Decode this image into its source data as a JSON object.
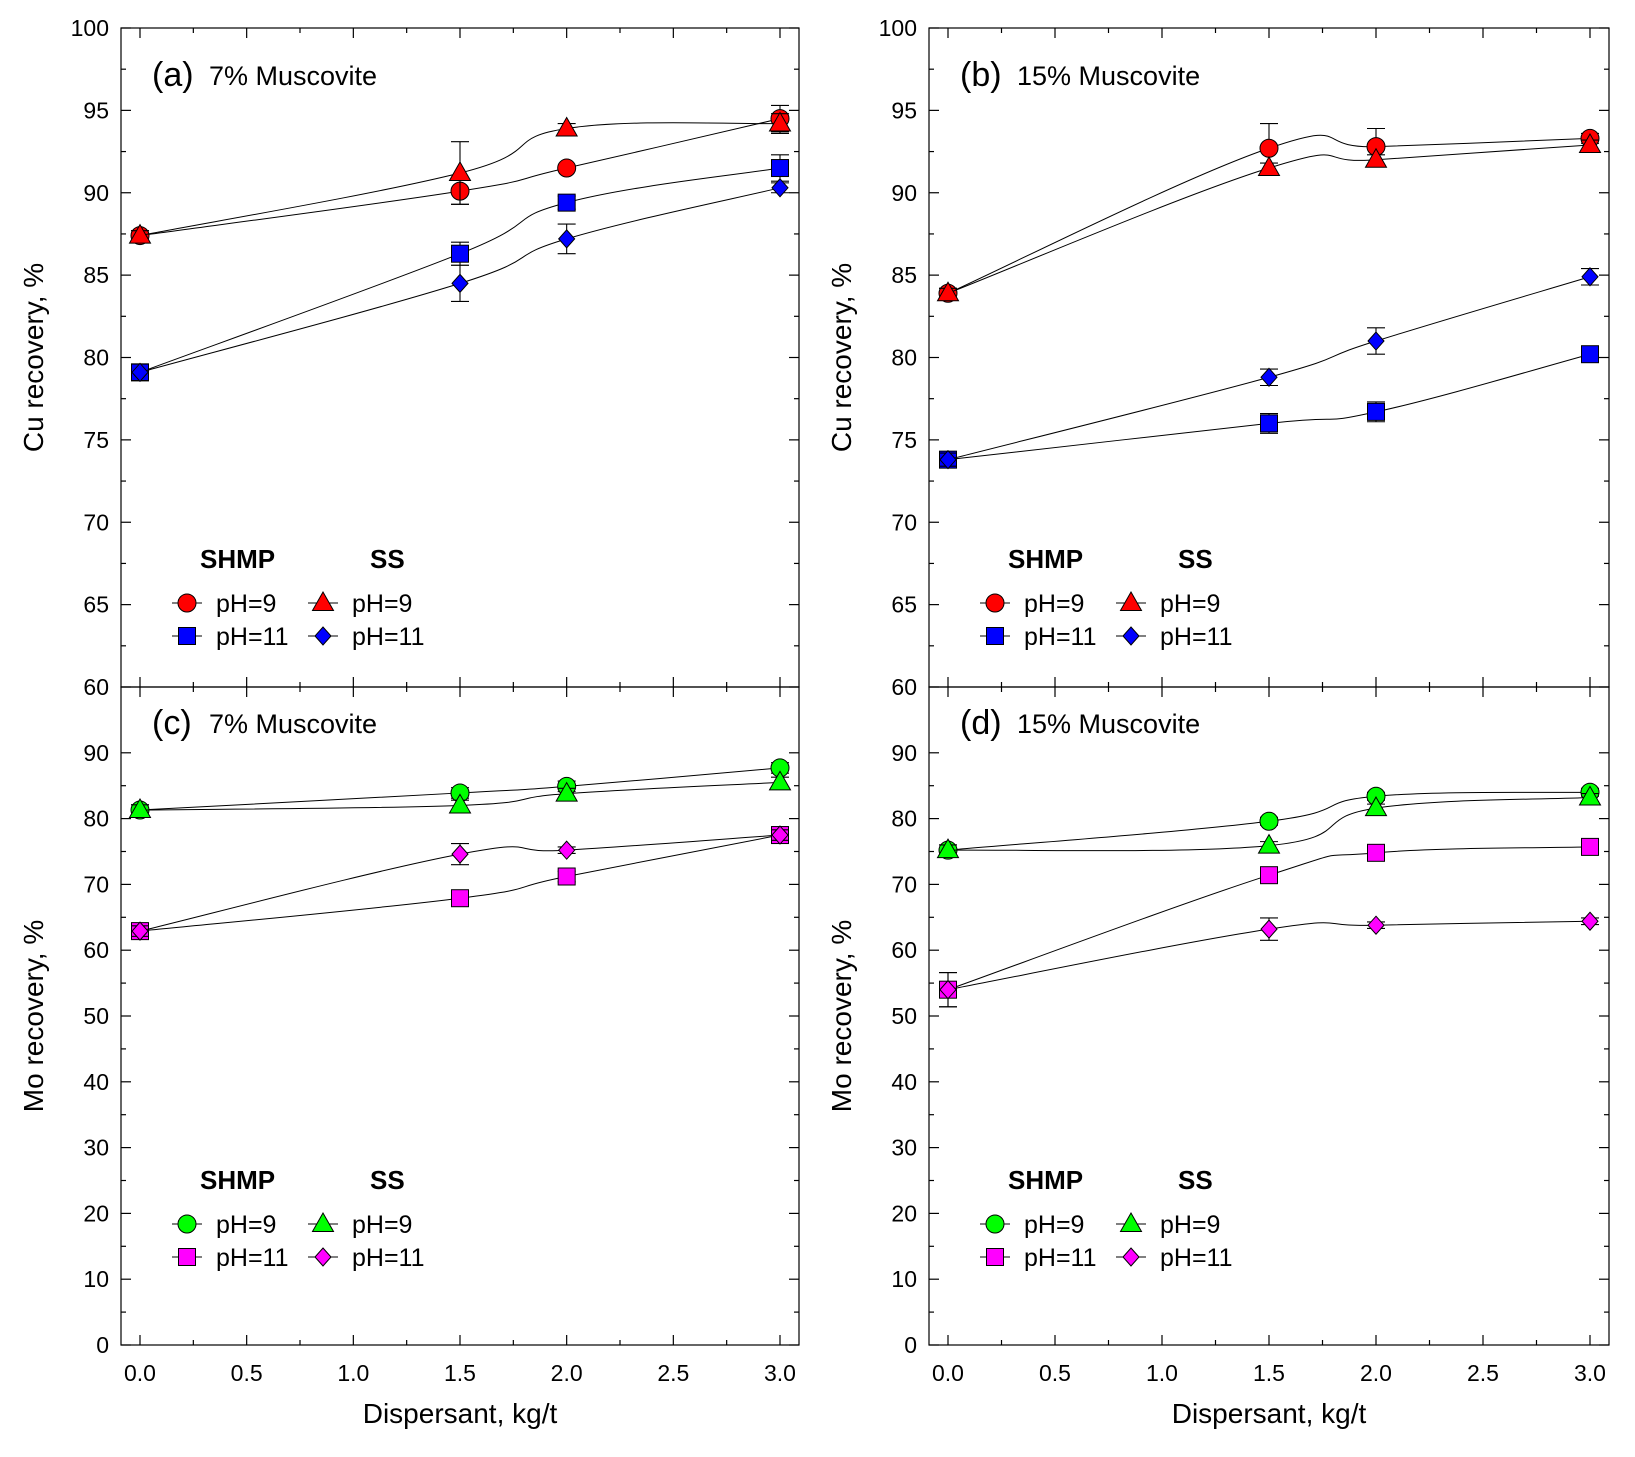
{
  "chart_data": [
    {
      "id": "a",
      "type": "line",
      "label": "(a)",
      "subtitle": "7% Muscovite",
      "ylabel": "Cu recovery, %",
      "xlabel": "Dispersant, kg/t",
      "xlim": [
        0,
        3
      ],
      "ylim": [
        60,
        100
      ],
      "yticks": [
        60,
        65,
        70,
        75,
        80,
        85,
        90,
        95,
        100
      ],
      "xticks": [
        0.0,
        0.5,
        1.0,
        1.5,
        2.0,
        2.5,
        3.0
      ],
      "xtick_labels": [
        "0.0",
        "0.5",
        "1.0",
        "1.5",
        "2.0",
        "2.5",
        "3.0"
      ],
      "show_x_ticklabels": false,
      "legend": {
        "headers": [
          "SHMP",
          "SS"
        ],
        "position": "lower-left"
      },
      "series": [
        {
          "name": "SHMP pH=9",
          "legend_label": "pH=9",
          "marker": "circle",
          "color": "#ff0000",
          "x": [
            0,
            1.5,
            2,
            3
          ],
          "y": [
            87.4,
            90.1,
            91.5,
            94.5
          ],
          "err": [
            0.3,
            0.8,
            0,
            0.8
          ]
        },
        {
          "name": "SS pH=9",
          "legend_label": "pH=9",
          "marker": "triangle",
          "color": "#ff0000",
          "x": [
            0,
            1.5,
            2,
            3
          ],
          "y": [
            87.4,
            91.2,
            93.9,
            94.2
          ],
          "err": [
            0.3,
            1.9,
            0.3,
            0.6
          ]
        },
        {
          "name": "SHMP pH=11",
          "legend_label": "pH=11",
          "marker": "square",
          "color": "#0000ff",
          "x": [
            0,
            1.5,
            2,
            3
          ],
          "y": [
            79.1,
            86.3,
            89.4,
            91.5
          ],
          "err": [
            0.5,
            0.7,
            0.4,
            0.8
          ]
        },
        {
          "name": "SS pH=11",
          "legend_label": "pH=11",
          "marker": "diamond",
          "color": "#0000ff",
          "x": [
            0,
            1.5,
            2,
            3
          ],
          "y": [
            79.1,
            84.5,
            87.2,
            90.3
          ],
          "err": [
            0.5,
            1.1,
            0.9,
            0.3
          ]
        }
      ]
    },
    {
      "id": "b",
      "type": "line",
      "label": "(b)",
      "subtitle": "15% Muscovite",
      "ylabel": "Cu recovery, %",
      "xlabel": "Dispersant, kg/t",
      "xlim": [
        0,
        3
      ],
      "ylim": [
        60,
        100
      ],
      "yticks": [
        60,
        65,
        70,
        75,
        80,
        85,
        90,
        95,
        100
      ],
      "xticks": [
        0.0,
        0.5,
        1.0,
        1.5,
        2.0,
        2.5,
        3.0
      ],
      "xtick_labels": [
        "0.0",
        "0.5",
        "1.0",
        "1.5",
        "2.0",
        "2.5",
        "3.0"
      ],
      "show_x_ticklabels": false,
      "legend": {
        "headers": [
          "SHMP",
          "SS"
        ],
        "position": "lower-left"
      },
      "series": [
        {
          "name": "SHMP pH=9",
          "legend_label": "pH=9",
          "marker": "circle",
          "color": "#ff0000",
          "x": [
            0,
            1.5,
            2,
            3
          ],
          "y": [
            83.9,
            92.7,
            92.8,
            93.3
          ],
          "err": [
            0.3,
            1.5,
            1.1,
            0.3
          ]
        },
        {
          "name": "SS pH=9",
          "legend_label": "pH=9",
          "marker": "triangle",
          "color": "#ff0000",
          "x": [
            0,
            1.5,
            2,
            3
          ],
          "y": [
            83.9,
            91.5,
            92.0,
            92.9
          ],
          "err": [
            0.3,
            0.3,
            0.3,
            0.3
          ]
        },
        {
          "name": "SHMP pH=11",
          "legend_label": "pH=11",
          "marker": "square",
          "color": "#0000ff",
          "x": [
            0,
            1.5,
            2,
            3
          ],
          "y": [
            73.8,
            76.0,
            76.7,
            80.2
          ],
          "err": [
            0.4,
            0.6,
            0.6,
            0.3
          ]
        },
        {
          "name": "SS pH=11",
          "legend_label": "pH=11",
          "marker": "diamond",
          "color": "#0000ff",
          "x": [
            0,
            1.5,
            2,
            3
          ],
          "y": [
            73.8,
            78.8,
            81.0,
            84.9
          ],
          "err": [
            0.4,
            0.5,
            0.8,
            0.5
          ]
        }
      ]
    },
    {
      "id": "c",
      "type": "line",
      "label": "(c)",
      "subtitle": "7% Muscovite",
      "ylabel": "Mo recovery, %",
      "xlabel": "Dispersant, kg/t",
      "xlim": [
        0,
        3
      ],
      "ylim": [
        0,
        100
      ],
      "yticks": [
        0,
        10,
        20,
        30,
        40,
        50,
        60,
        70,
        80,
        90
      ],
      "xticks": [
        0.0,
        0.5,
        1.0,
        1.5,
        2.0,
        2.5,
        3.0
      ],
      "xtick_labels": [
        "0.0",
        "0.5",
        "1.0",
        "1.5",
        "2.0",
        "2.5",
        "3.0"
      ],
      "show_x_ticklabels": true,
      "legend": {
        "headers": [
          "SHMP",
          "SS"
        ],
        "position": "lower-left"
      },
      "series": [
        {
          "name": "SHMP pH=9",
          "legend_label": "pH=9",
          "marker": "circle",
          "color": "#00ff00",
          "x": [
            0,
            1.5,
            2,
            3
          ],
          "y": [
            81.3,
            83.9,
            84.9,
            87.7
          ],
          "err": [
            0.8,
            0.8,
            0.8,
            0.8
          ]
        },
        {
          "name": "SS pH=9",
          "legend_label": "pH=9",
          "marker": "triangle",
          "color": "#00ff00",
          "x": [
            0,
            1.5,
            2,
            3
          ],
          "y": [
            81.3,
            82.0,
            83.8,
            85.5
          ],
          "err": [
            0.8,
            0.8,
            0.8,
            0.8
          ]
        },
        {
          "name": "SHMP pH=11",
          "legend_label": "pH=11",
          "marker": "square",
          "color": "#ff00ff",
          "x": [
            0,
            1.5,
            2,
            3
          ],
          "y": [
            62.9,
            67.9,
            71.2,
            77.5
          ],
          "err": [
            0.8,
            0.8,
            0.8,
            0.8
          ]
        },
        {
          "name": "SS pH=11",
          "legend_label": "pH=11",
          "marker": "diamond",
          "color": "#ff00ff",
          "x": [
            0,
            1.5,
            2,
            3
          ],
          "y": [
            62.9,
            74.6,
            75.2,
            77.5
          ],
          "err": [
            0.8,
            1.6,
            0.5,
            0.8
          ]
        }
      ]
    },
    {
      "id": "d",
      "type": "line",
      "label": "(d)",
      "subtitle": "15% Muscovite",
      "ylabel": "Mo recovery, %",
      "xlabel": "Dispersant, kg/t",
      "xlim": [
        0,
        3
      ],
      "ylim": [
        0,
        100
      ],
      "yticks": [
        0,
        10,
        20,
        30,
        40,
        50,
        60,
        70,
        80,
        90
      ],
      "xticks": [
        0.0,
        0.5,
        1.0,
        1.5,
        2.0,
        2.5,
        3.0
      ],
      "xtick_labels": [
        "0.0",
        "0.5",
        "1.0",
        "1.5",
        "2.0",
        "2.5",
        "3.0"
      ],
      "show_x_ticklabels": true,
      "legend": {
        "headers": [
          "SHMP",
          "SS"
        ],
        "position": "lower-left"
      },
      "series": [
        {
          "name": "SHMP pH=9",
          "legend_label": "pH=9",
          "marker": "circle",
          "color": "#00ff00",
          "x": [
            0,
            1.5,
            2,
            3
          ],
          "y": [
            75.2,
            79.6,
            83.4,
            84.0
          ],
          "err": [
            0.8,
            0.6,
            0.6,
            0.6
          ]
        },
        {
          "name": "SS pH=9",
          "legend_label": "pH=9",
          "marker": "triangle",
          "color": "#00ff00",
          "x": [
            0,
            1.5,
            2,
            3
          ],
          "y": [
            75.2,
            75.9,
            81.6,
            83.2
          ],
          "err": [
            0.8,
            0.6,
            0.6,
            0.6
          ]
        },
        {
          "name": "SHMP pH=11",
          "legend_label": "pH=11",
          "marker": "square",
          "color": "#ff00ff",
          "x": [
            0,
            1.5,
            2,
            3
          ],
          "y": [
            54.0,
            71.4,
            74.8,
            75.7
          ],
          "err": [
            2.6,
            0.8,
            0.6,
            0.6
          ]
        },
        {
          "name": "SS pH=11",
          "legend_label": "pH=11",
          "marker": "diamond",
          "color": "#ff00ff",
          "x": [
            0,
            1.5,
            2,
            3
          ],
          "y": [
            54.0,
            63.2,
            63.8,
            64.4
          ],
          "err": [
            2.6,
            1.7,
            0.5,
            0.5
          ]
        }
      ]
    }
  ]
}
